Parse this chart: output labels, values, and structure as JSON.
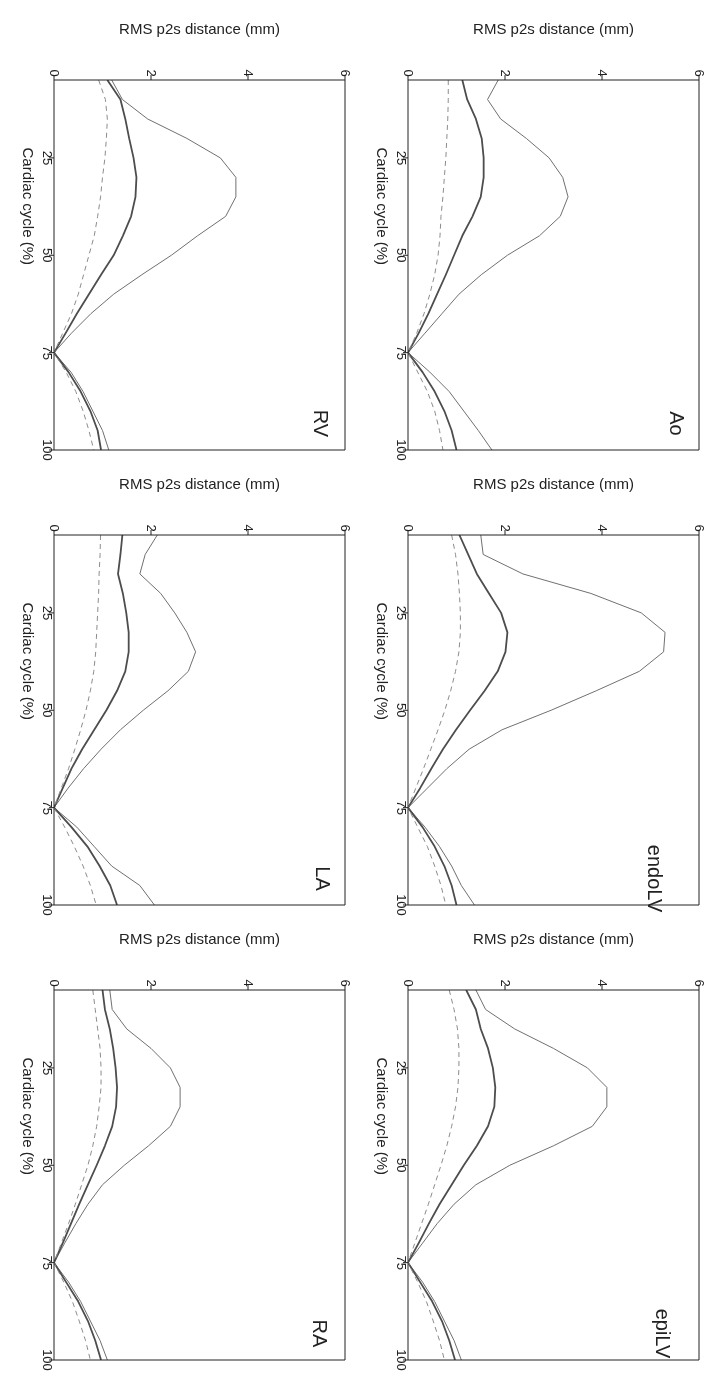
{
  "chart_data": [
    {
      "type": "line",
      "title": "RV",
      "xlabel": "RMS p2s distance (mm)",
      "ylabel": "Cardiac cycle (%)",
      "orientation": "horizontal",
      "marker": "none",
      "x": [
        5,
        10,
        15,
        20,
        25,
        30,
        35,
        40,
        45,
        50,
        55,
        60,
        65,
        70,
        75,
        80,
        85,
        90,
        95,
        100
      ],
      "xlim": [
        0,
        6
      ],
      "xticks": [
        0,
        2,
        4,
        6
      ],
      "ylim": [
        100,
        5
      ],
      "yticks": [
        25,
        50,
        75,
        100
      ],
      "series": [
        {
          "color": "#707070",
          "line_style": "solid",
          "values": [
            1.19,
            1.41,
            1.93,
            2.74,
            3.43,
            3.75,
            3.75,
            3.54,
            2.96,
            2.42,
            1.81,
            1.23,
            0.76,
            0.36,
            0,
            0.35,
            0.6,
            0.8,
            1.0,
            1.13
          ]
        },
        {
          "color": "#4d4d4d",
          "line_style": "solid",
          "values": [
            1.1,
            1.37,
            1.47,
            1.55,
            1.64,
            1.7,
            1.68,
            1.59,
            1.42,
            1.23,
            0.97,
            0.72,
            0.47,
            0.24,
            0,
            0.3,
            0.55,
            0.75,
            0.9,
            0.97
          ]
        },
        {
          "color": "#8c8c8c",
          "line_style": "dashed",
          "values": [
            0.92,
            1.06,
            1.1,
            1.08,
            1.05,
            1.0,
            0.96,
            0.9,
            0.83,
            0.72,
            0.61,
            0.5,
            0.36,
            0.18,
            0,
            0.25,
            0.45,
            0.6,
            0.72,
            0.82
          ]
        }
      ]
    },
    {
      "type": "line",
      "title": "Ao",
      "xlabel": "RMS p2s distance (mm)",
      "ylabel": "Cardiac cycle (%)",
      "orientation": "horizontal",
      "marker": "none",
      "x": [
        5,
        10,
        15,
        20,
        25,
        30,
        35,
        40,
        45,
        50,
        55,
        60,
        65,
        70,
        75,
        80,
        85,
        90,
        95,
        100
      ],
      "xlim": [
        0,
        6
      ],
      "xticks": [
        0,
        2,
        4,
        6
      ],
      "ylim": [
        100,
        5
      ],
      "yticks": [
        25,
        50,
        75,
        100
      ],
      "series": [
        {
          "color": "#707070",
          "line_style": "solid",
          "values": [
            1.86,
            1.64,
            1.91,
            2.44,
            2.91,
            3.19,
            3.3,
            3.14,
            2.71,
            2.05,
            1.51,
            1.05,
            0.7,
            0.35,
            0,
            0.45,
            0.85,
            1.15,
            1.45,
            1.73
          ]
        },
        {
          "color": "#4d4d4d",
          "line_style": "solid",
          "values": [
            1.12,
            1.22,
            1.4,
            1.52,
            1.56,
            1.56,
            1.5,
            1.33,
            1.12,
            0.95,
            0.78,
            0.6,
            0.42,
            0.22,
            0,
            0.3,
            0.55,
            0.75,
            0.9,
            1.0
          ]
        },
        {
          "color": "#8c8c8c",
          "line_style": "dashed",
          "values": [
            0.83,
            0.83,
            0.82,
            0.8,
            0.78,
            0.75,
            0.72,
            0.68,
            0.66,
            0.62,
            0.55,
            0.45,
            0.33,
            0.18,
            0,
            0.2,
            0.4,
            0.55,
            0.65,
            0.72
          ]
        }
      ]
    },
    {
      "type": "line",
      "title": "LA",
      "xlabel": "RMS p2s distance (mm)",
      "ylabel": "Cardiac cycle (%)",
      "orientation": "horizontal",
      "marker": "none",
      "x": [
        5,
        10,
        15,
        20,
        25,
        30,
        35,
        40,
        45,
        50,
        55,
        60,
        65,
        70,
        75,
        80,
        85,
        90,
        95,
        100
      ],
      "xlim": [
        0,
        6
      ],
      "xticks": [
        0,
        2,
        4,
        6
      ],
      "ylim": [
        100,
        5
      ],
      "yticks": [
        25,
        50,
        75,
        100
      ],
      "series": [
        {
          "color": "#707070",
          "line_style": "solid",
          "values": [
            2.13,
            1.88,
            1.77,
            2.2,
            2.49,
            2.74,
            2.92,
            2.77,
            2.35,
            1.84,
            1.37,
            0.97,
            0.61,
            0.29,
            0,
            0.47,
            0.83,
            1.19,
            1.77,
            2.07
          ]
        },
        {
          "color": "#4d4d4d",
          "line_style": "solid",
          "values": [
            1.41,
            1.37,
            1.32,
            1.42,
            1.49,
            1.54,
            1.54,
            1.47,
            1.3,
            1.08,
            0.83,
            0.58,
            0.36,
            0.18,
            0,
            0.36,
            0.69,
            0.94,
            1.16,
            1.3
          ]
        },
        {
          "color": "#8c8c8c",
          "line_style": "dashed",
          "values": [
            0.96,
            0.95,
            0.93,
            0.92,
            0.9,
            0.88,
            0.86,
            0.82,
            0.75,
            0.66,
            0.55,
            0.43,
            0.3,
            0.15,
            0,
            0.22,
            0.42,
            0.6,
            0.75,
            0.87
          ]
        }
      ]
    },
    {
      "type": "line",
      "title": "endoLV",
      "xlabel": "RMS p2s distance (mm)",
      "ylabel": "Cardiac cycle (%)",
      "orientation": "horizontal",
      "marker": "none",
      "x": [
        5,
        10,
        15,
        20,
        25,
        30,
        35,
        40,
        45,
        50,
        55,
        60,
        65,
        70,
        75,
        80,
        85,
        90,
        95,
        100
      ],
      "xlim": [
        0,
        6
      ],
      "xticks": [
        0,
        2,
        4,
        6
      ],
      "ylim": [
        100,
        5
      ],
      "yticks": [
        25,
        50,
        75,
        100
      ],
      "series": [
        {
          "color": "#707070",
          "line_style": "solid",
          "values": [
            1.5,
            1.55,
            2.37,
            3.77,
            4.81,
            5.3,
            5.27,
            4.77,
            3.88,
            2.95,
            1.94,
            1.26,
            0.8,
            0.4,
            0,
            0.35,
            0.65,
            0.9,
            1.1,
            1.37
          ]
        },
        {
          "color": "#4d4d4d",
          "line_style": "solid",
          "values": [
            1.06,
            1.24,
            1.42,
            1.67,
            1.92,
            2.05,
            2.01,
            1.85,
            1.58,
            1.28,
            0.99,
            0.72,
            0.48,
            0.25,
            0,
            0.3,
            0.55,
            0.75,
            0.9,
            1.0
          ]
        },
        {
          "color": "#8c8c8c",
          "line_style": "dashed",
          "values": [
            0.9,
            0.98,
            1.03,
            1.06,
            1.08,
            1.08,
            1.05,
            0.98,
            0.88,
            0.76,
            0.62,
            0.47,
            0.32,
            0.16,
            0,
            0.2,
            0.4,
            0.55,
            0.68,
            0.78
          ]
        }
      ]
    },
    {
      "type": "line",
      "title": "RA",
      "xlabel": "RMS p2s distance (mm)",
      "ylabel": "Cardiac cycle (%)",
      "orientation": "horizontal",
      "marker": "none",
      "x": [
        5,
        10,
        15,
        20,
        25,
        30,
        35,
        40,
        45,
        50,
        55,
        60,
        65,
        70,
        75,
        80,
        85,
        90,
        95,
        100
      ],
      "xlim": [
        0,
        6
      ],
      "xticks": [
        0,
        2,
        4,
        6
      ],
      "ylim": [
        100,
        5
      ],
      "yticks": [
        25,
        50,
        75,
        100
      ],
      "series": [
        {
          "color": "#707070",
          "line_style": "solid",
          "values": [
            1.15,
            1.2,
            1.5,
            2.0,
            2.4,
            2.6,
            2.6,
            2.4,
            1.95,
            1.45,
            1.0,
            0.7,
            0.45,
            0.22,
            0,
            0.3,
            0.55,
            0.75,
            0.95,
            1.1
          ]
        },
        {
          "color": "#4d4d4d",
          "line_style": "solid",
          "values": [
            1.0,
            1.05,
            1.15,
            1.22,
            1.27,
            1.3,
            1.28,
            1.2,
            1.05,
            0.88,
            0.7,
            0.52,
            0.35,
            0.18,
            0,
            0.25,
            0.5,
            0.7,
            0.85,
            0.97
          ]
        },
        {
          "color": "#8c8c8c",
          "line_style": "dashed",
          "values": [
            0.8,
            0.85,
            0.9,
            0.95,
            0.97,
            0.97,
            0.93,
            0.88,
            0.8,
            0.7,
            0.57,
            0.44,
            0.3,
            0.15,
            0,
            0.2,
            0.38,
            0.52,
            0.65,
            0.75
          ]
        }
      ]
    },
    {
      "type": "line",
      "title": "epiLV",
      "xlabel": "RMS p2s distance (mm)",
      "ylabel": "Cardiac cycle (%)",
      "orientation": "horizontal",
      "marker": "none",
      "x": [
        5,
        10,
        15,
        20,
        25,
        30,
        35,
        40,
        45,
        50,
        55,
        60,
        65,
        70,
        75,
        80,
        85,
        90,
        95,
        100
      ],
      "xlim": [
        0,
        6
      ],
      "xticks": [
        0,
        2,
        4,
        6
      ],
      "ylim": [
        100,
        5
      ],
      "yticks": [
        25,
        50,
        75,
        100
      ],
      "series": [
        {
          "color": "#707070",
          "line_style": "solid",
          "values": [
            1.4,
            1.6,
            2.2,
            3.0,
            3.7,
            4.1,
            4.1,
            3.8,
            3.0,
            2.1,
            1.4,
            0.95,
            0.6,
            0.3,
            0,
            0.3,
            0.55,
            0.75,
            0.95,
            1.1
          ]
        },
        {
          "color": "#4d4d4d",
          "line_style": "solid",
          "values": [
            1.2,
            1.4,
            1.5,
            1.65,
            1.75,
            1.8,
            1.78,
            1.65,
            1.42,
            1.15,
            0.9,
            0.65,
            0.43,
            0.22,
            0,
            0.25,
            0.5,
            0.7,
            0.85,
            0.97
          ]
        },
        {
          "color": "#8c8c8c",
          "line_style": "dashed",
          "values": [
            0.85,
            0.95,
            1.02,
            1.05,
            1.05,
            1.03,
            0.98,
            0.9,
            0.8,
            0.68,
            0.55,
            0.42,
            0.28,
            0.14,
            0,
            0.2,
            0.38,
            0.52,
            0.65,
            0.75
          ]
        }
      ]
    }
  ]
}
